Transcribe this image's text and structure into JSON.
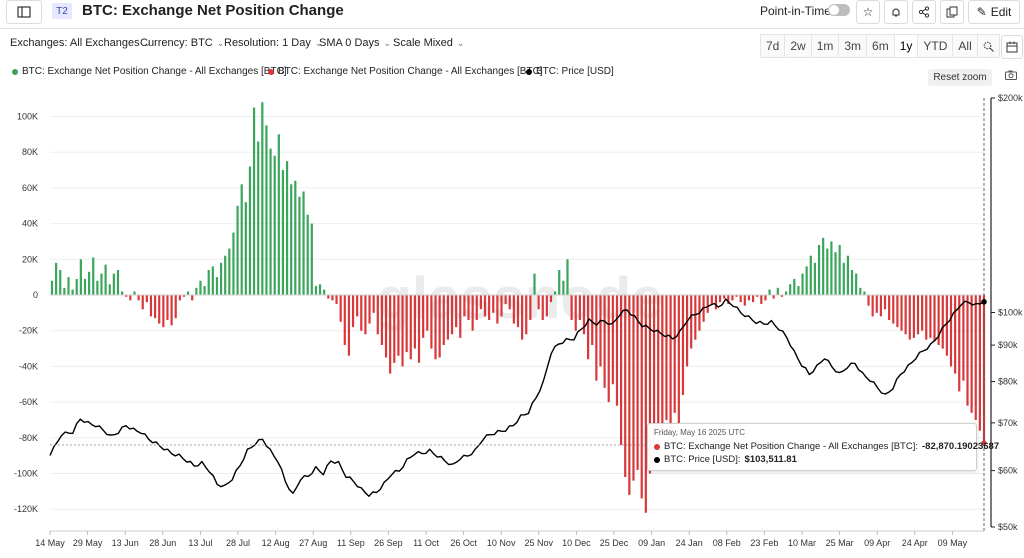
{
  "header": {
    "badge": "T2",
    "title": "BTC: Exchange Net Position Change",
    "point_in_time": "Point-in-Time",
    "edit": "Edit"
  },
  "filters": {
    "exchanges": "Exchanges: All Exchanges",
    "currency": "Currency: BTC",
    "resolution": "Resolution: 1 Day",
    "sma": "SMA 0 Days",
    "scale": "Scale Mixed"
  },
  "ranges": [
    "7d",
    "2w",
    "1m",
    "3m",
    "6m",
    "1y",
    "YTD",
    "All"
  ],
  "active_range": "1y",
  "legend": [
    {
      "label": "BTC: Exchange Net Position Change - All Exchanges [BTC]",
      "color": "#3aa65b"
    },
    {
      "label": "BTC: Exchange Net Position Change - All Exchanges [BTC]",
      "color": "#d9383a"
    },
    {
      "label": "BTC: Price [USD]",
      "color": "#000000"
    }
  ],
  "reset_zoom": "Reset zoom",
  "tooltip": {
    "date": "Friday, May 16 2025 UTC",
    "row1_label": "BTC: Exchange Net Position Change - All Exchanges [BTC]:",
    "row1_value": "-82,870.19023687",
    "row2_label": "BTC: Price [USD]:",
    "row2_value": "$103,511.81"
  },
  "watermark": "glassnode",
  "chart_data": {
    "type": "bar",
    "x_ticks": [
      "14 May",
      "29 May",
      "13 Jun",
      "28 Jun",
      "13 Jul",
      "28 Jul",
      "12 Aug",
      "27 Aug",
      "11 Sep",
      "26 Sep",
      "11 Oct",
      "26 Oct",
      "10 Nov",
      "25 Nov",
      "10 Dec",
      "25 Dec",
      "09 Jan",
      "24 Jan",
      "08 Feb",
      "23 Feb",
      "10 Mar",
      "25 Mar",
      "09 Apr",
      "24 Apr",
      "09 May"
    ],
    "y_left_ticks": [
      "100K",
      "80K",
      "60K",
      "40K",
      "20K",
      "0",
      "-20K",
      "-40K",
      "-60K",
      "-80K",
      "-100K",
      "-120K"
    ],
    "y_left_range": [
      -124000,
      110000
    ],
    "y_right_ticks": [
      "$200k",
      "$100k",
      "$90k",
      "$80k",
      "$70k",
      "$60k",
      "$50k"
    ],
    "y_right_scale": "log",
    "y_right_range": [
      50000,
      200000
    ],
    "tick_step_days": 15,
    "bar_colors": {
      "positive": "#3aa65b",
      "negative": "#d9383a"
    },
    "net_position_change_keyframes": [
      [
        0,
        8000
      ],
      [
        1,
        18000
      ],
      [
        2,
        14000
      ],
      [
        3,
        4000
      ],
      [
        4,
        10000
      ],
      [
        5,
        3000
      ],
      [
        6,
        9000
      ],
      [
        7,
        20000
      ],
      [
        8,
        9000
      ],
      [
        9,
        13000
      ],
      [
        10,
        21000
      ],
      [
        11,
        8000
      ],
      [
        12,
        12000
      ],
      [
        13,
        17000
      ],
      [
        14,
        6000
      ],
      [
        15,
        12000
      ],
      [
        16,
        14000
      ],
      [
        17,
        2000
      ],
      [
        18,
        -1000
      ],
      [
        19,
        -3000
      ],
      [
        20,
        2000
      ],
      [
        21,
        -3000
      ],
      [
        22,
        -8000
      ],
      [
        23,
        -4000
      ],
      [
        24,
        -12000
      ],
      [
        25,
        -13000
      ],
      [
        26,
        -16000
      ],
      [
        27,
        -18000
      ],
      [
        28,
        -14000
      ],
      [
        29,
        -17000
      ],
      [
        30,
        -13000
      ],
      [
        31,
        -3000
      ],
      [
        32,
        -1000
      ],
      [
        33,
        2000
      ],
      [
        34,
        -3000
      ],
      [
        35,
        4000
      ],
      [
        36,
        8000
      ],
      [
        37,
        5000
      ],
      [
        38,
        14000
      ],
      [
        39,
        16000
      ],
      [
        40,
        10000
      ],
      [
        41,
        18000
      ],
      [
        42,
        22000
      ],
      [
        43,
        26000
      ],
      [
        44,
        35000
      ],
      [
        45,
        50000
      ],
      [
        46,
        62000
      ],
      [
        47,
        52000
      ],
      [
        48,
        72000
      ],
      [
        49,
        105000
      ],
      [
        50,
        86000
      ],
      [
        51,
        108000
      ],
      [
        52,
        95000
      ],
      [
        53,
        82000
      ],
      [
        54,
        78000
      ],
      [
        55,
        90000
      ],
      [
        56,
        70000
      ],
      [
        57,
        75000
      ],
      [
        58,
        62000
      ],
      [
        59,
        64000
      ],
      [
        60,
        55000
      ],
      [
        61,
        58000
      ],
      [
        62,
        45000
      ],
      [
        63,
        40000
      ],
      [
        64,
        5000
      ],
      [
        65,
        6000
      ],
      [
        66,
        3000
      ],
      [
        67,
        -2000
      ],
      [
        68,
        -3000
      ],
      [
        69,
        -5000
      ],
      [
        70,
        -15000
      ],
      [
        71,
        -28000
      ],
      [
        72,
        -34000
      ],
      [
        73,
        -18000
      ],
      [
        74,
        -12000
      ],
      [
        75,
        -20000
      ],
      [
        76,
        -22000
      ],
      [
        77,
        -16000
      ],
      [
        78,
        -10000
      ],
      [
        79,
        -22000
      ],
      [
        80,
        -28000
      ],
      [
        81,
        -35000
      ],
      [
        82,
        -44000
      ],
      [
        83,
        -38000
      ],
      [
        84,
        -34000
      ],
      [
        85,
        -40000
      ],
      [
        86,
        -32000
      ],
      [
        87,
        -36000
      ],
      [
        88,
        -30000
      ],
      [
        89,
        -38000
      ],
      [
        90,
        -24000
      ],
      [
        91,
        -20000
      ],
      [
        92,
        -30000
      ],
      [
        93,
        -36000
      ],
      [
        94,
        -35000
      ],
      [
        95,
        -28000
      ],
      [
        96,
        -25000
      ],
      [
        97,
        -22000
      ],
      [
        98,
        -18000
      ],
      [
        99,
        -24000
      ],
      [
        100,
        -12000
      ],
      [
        101,
        -14000
      ],
      [
        102,
        -20000
      ],
      [
        103,
        -14000
      ],
      [
        104,
        -8000
      ],
      [
        105,
        -12000
      ],
      [
        106,
        -14000
      ],
      [
        107,
        -10000
      ],
      [
        108,
        -16000
      ],
      [
        109,
        -12000
      ],
      [
        110,
        -5000
      ],
      [
        111,
        -8000
      ],
      [
        112,
        -16000
      ],
      [
        113,
        -18000
      ],
      [
        114,
        -25000
      ],
      [
        115,
        -22000
      ],
      [
        116,
        -14000
      ],
      [
        117,
        12000
      ],
      [
        118,
        -8000
      ],
      [
        119,
        -14000
      ],
      [
        120,
        -12000
      ],
      [
        121,
        -4000
      ],
      [
        122,
        2000
      ],
      [
        123,
        14000
      ],
      [
        124,
        8000
      ],
      [
        125,
        20000
      ],
      [
        126,
        -14000
      ],
      [
        127,
        -20000
      ],
      [
        128,
        -14000
      ],
      [
        129,
        -22000
      ],
      [
        130,
        -36000
      ],
      [
        131,
        -28000
      ],
      [
        132,
        -48000
      ],
      [
        133,
        -40000
      ],
      [
        134,
        -52000
      ],
      [
        135,
        -60000
      ],
      [
        136,
        -50000
      ],
      [
        137,
        -62000
      ],
      [
        138,
        -84000
      ],
      [
        139,
        -102000
      ],
      [
        140,
        -112000
      ],
      [
        141,
        -104000
      ],
      [
        142,
        -98000
      ],
      [
        143,
        -114000
      ],
      [
        144,
        -122000
      ],
      [
        145,
        -100000
      ],
      [
        146,
        -96000
      ],
      [
        147,
        -86000
      ],
      [
        148,
        -78000
      ],
      [
        149,
        -70000
      ],
      [
        150,
        -78000
      ],
      [
        151,
        -66000
      ],
      [
        152,
        -72000
      ],
      [
        153,
        -56000
      ],
      [
        154,
        -40000
      ],
      [
        155,
        -30000
      ],
      [
        156,
        -25000
      ],
      [
        157,
        -20000
      ],
      [
        158,
        -15000
      ],
      [
        159,
        -10000
      ],
      [
        160,
        -5000
      ],
      [
        161,
        -8000
      ],
      [
        162,
        -4000
      ],
      [
        163,
        -2000
      ],
      [
        164,
        -5000
      ],
      [
        165,
        -3000
      ],
      [
        166,
        -1000
      ],
      [
        167,
        -4000
      ],
      [
        168,
        -6000
      ],
      [
        169,
        -3000
      ],
      [
        170,
        -4000
      ],
      [
        171,
        -1000
      ],
      [
        172,
        -5000
      ],
      [
        173,
        -3000
      ],
      [
        174,
        3000
      ],
      [
        175,
        -2000
      ],
      [
        176,
        4000
      ],
      [
        177,
        -1000
      ],
      [
        178,
        2000
      ],
      [
        179,
        6000
      ],
      [
        180,
        9000
      ],
      [
        181,
        5000
      ],
      [
        182,
        12000
      ],
      [
        183,
        16000
      ],
      [
        184,
        22000
      ],
      [
        185,
        18000
      ],
      [
        186,
        28000
      ],
      [
        187,
        32000
      ],
      [
        188,
        26000
      ],
      [
        189,
        30000
      ],
      [
        190,
        24000
      ],
      [
        191,
        28000
      ],
      [
        192,
        18000
      ],
      [
        193,
        22000
      ],
      [
        194,
        14000
      ],
      [
        195,
        12000
      ],
      [
        196,
        4000
      ],
      [
        197,
        2000
      ],
      [
        198,
        -6000
      ],
      [
        199,
        -12000
      ],
      [
        200,
        -10000
      ],
      [
        201,
        -12000
      ],
      [
        202,
        -8000
      ],
      [
        203,
        -14000
      ],
      [
        204,
        -16000
      ],
      [
        205,
        -18000
      ],
      [
        206,
        -20000
      ],
      [
        207,
        -22000
      ],
      [
        208,
        -25000
      ],
      [
        209,
        -24000
      ],
      [
        210,
        -22000
      ],
      [
        211,
        -20000
      ],
      [
        212,
        -25000
      ],
      [
        213,
        -24000
      ],
      [
        214,
        -26000
      ],
      [
        215,
        -28000
      ],
      [
        216,
        -30000
      ],
      [
        217,
        -34000
      ],
      [
        218,
        -40000
      ],
      [
        219,
        -44000
      ],
      [
        220,
        -54000
      ],
      [
        221,
        -48000
      ],
      [
        222,
        -62000
      ],
      [
        223,
        -66000
      ],
      [
        224,
        -70000
      ],
      [
        225,
        -76000
      ],
      [
        226,
        -82870
      ]
    ],
    "price_usd_keyframes": [
      [
        0,
        63000
      ],
      [
        3,
        67500
      ],
      [
        6,
        68000
      ],
      [
        8,
        71000
      ],
      [
        10,
        70000
      ],
      [
        12,
        69500
      ],
      [
        14,
        68500
      ],
      [
        16,
        67000
      ],
      [
        18,
        68000
      ],
      [
        20,
        69500
      ],
      [
        22,
        68500
      ],
      [
        24,
        68000
      ],
      [
        26,
        66500
      ],
      [
        28,
        65500
      ],
      [
        30,
        64500
      ],
      [
        32,
        63500
      ],
      [
        34,
        63000
      ],
      [
        36,
        62000
      ],
      [
        38,
        61000
      ],
      [
        40,
        61500
      ],
      [
        42,
        60000
      ],
      [
        44,
        57500
      ],
      [
        46,
        57000
      ],
      [
        48,
        58500
      ],
      [
        50,
        61000
      ],
      [
        52,
        64000
      ],
      [
        54,
        65500
      ],
      [
        56,
        66500
      ],
      [
        58,
        64000
      ],
      [
        60,
        62000
      ],
      [
        62,
        58000
      ],
      [
        64,
        55500
      ],
      [
        66,
        58500
      ],
      [
        68,
        59000
      ],
      [
        70,
        60500
      ],
      [
        72,
        59500
      ],
      [
        74,
        62000
      ],
      [
        76,
        61500
      ],
      [
        78,
        59000
      ],
      [
        80,
        58000
      ],
      [
        82,
        56500
      ],
      [
        84,
        55500
      ],
      [
        86,
        56000
      ],
      [
        88,
        57500
      ],
      [
        90,
        59500
      ],
      [
        92,
        60000
      ],
      [
        94,
        62000
      ],
      [
        96,
        63500
      ],
      [
        98,
        63500
      ],
      [
        100,
        64000
      ],
      [
        102,
        63000
      ],
      [
        104,
        62000
      ],
      [
        106,
        61000
      ],
      [
        108,
        62500
      ],
      [
        110,
        63000
      ],
      [
        112,
        64000
      ],
      [
        114,
        66500
      ],
      [
        116,
        67500
      ],
      [
        118,
        68000
      ],
      [
        120,
        68500
      ],
      [
        122,
        69500
      ],
      [
        124,
        71500
      ],
      [
        126,
        72500
      ],
      [
        128,
        76000
      ],
      [
        130,
        80000
      ],
      [
        132,
        88000
      ],
      [
        134,
        90500
      ],
      [
        136,
        91500
      ],
      [
        138,
        92000
      ],
      [
        140,
        95000
      ],
      [
        142,
        97500
      ],
      [
        144,
        96500
      ],
      [
        146,
        97500
      ],
      [
        148,
        96000
      ],
      [
        150,
        99500
      ],
      [
        152,
        101000
      ],
      [
        154,
        98500
      ],
      [
        156,
        96000
      ],
      [
        158,
        95000
      ],
      [
        160,
        94000
      ],
      [
        162,
        93000
      ],
      [
        164,
        92000
      ],
      [
        166,
        94000
      ],
      [
        168,
        98000
      ],
      [
        170,
        99500
      ],
      [
        172,
        101000
      ],
      [
        174,
        103000
      ],
      [
        176,
        102000
      ],
      [
        178,
        104000
      ],
      [
        180,
        102500
      ],
      [
        182,
        100000
      ],
      [
        184,
        98500
      ],
      [
        186,
        97000
      ],
      [
        188,
        96500
      ],
      [
        190,
        97000
      ],
      [
        192,
        95000
      ],
      [
        194,
        92500
      ],
      [
        196,
        88000
      ],
      [
        198,
        84500
      ],
      [
        200,
        82000
      ],
      [
        202,
        84000
      ],
      [
        204,
        86500
      ],
      [
        206,
        84000
      ],
      [
        208,
        82000
      ],
      [
        210,
        84000
      ],
      [
        212,
        85000
      ],
      [
        214,
        82000
      ],
      [
        216,
        80500
      ],
      [
        218,
        78500
      ],
      [
        220,
        76500
      ],
      [
        222,
        78500
      ],
      [
        224,
        82000
      ],
      [
        226,
        84000
      ],
      [
        228,
        86500
      ],
      [
        230,
        88500
      ],
      [
        232,
        90000
      ],
      [
        234,
        93000
      ],
      [
        236,
        96500
      ],
      [
        238,
        99500
      ],
      [
        240,
        103000
      ],
      [
        242,
        103500
      ],
      [
        244,
        102500
      ],
      [
        246,
        103511.81
      ]
    ]
  }
}
